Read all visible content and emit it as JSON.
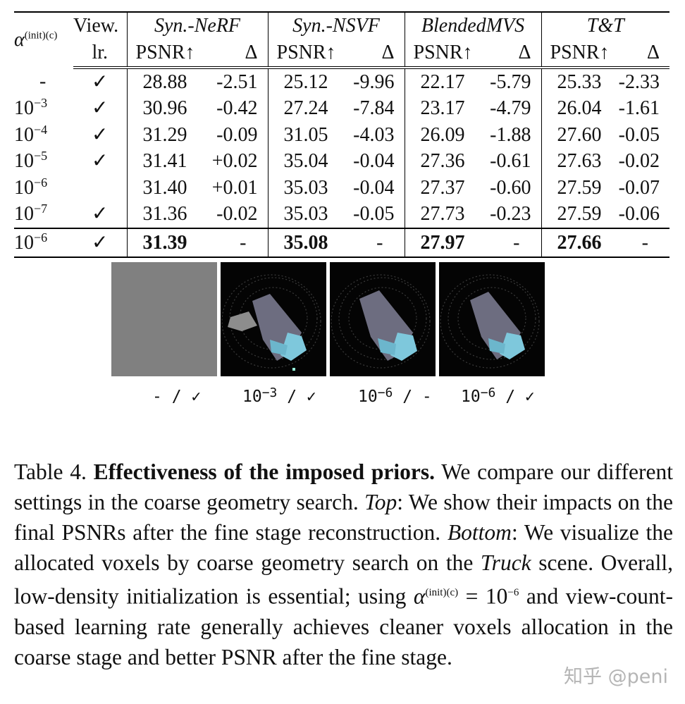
{
  "table": {
    "head": {
      "alpha_label": "α",
      "alpha_sup": "(init)(c)",
      "view_label_1": "View.",
      "view_label_2": "lr.",
      "datasets": [
        "Syn.-NeRF",
        "Syn.-NSVF",
        "BlendedMVS",
        "T&T"
      ],
      "metric": "PSNR↑",
      "delta": "Δ"
    },
    "rows": [
      {
        "alpha": "-",
        "exp": "",
        "view": "✓",
        "vals": [
          [
            "28.88",
            "-2.51"
          ],
          [
            "25.12",
            "-9.96"
          ],
          [
            "22.17",
            "-5.79"
          ],
          [
            "25.33",
            "-2.33"
          ]
        ]
      },
      {
        "alpha": "10",
        "exp": "−3",
        "view": "✓",
        "vals": [
          [
            "30.96",
            "-0.42"
          ],
          [
            "27.24",
            "-7.84"
          ],
          [
            "23.17",
            "-4.79"
          ],
          [
            "26.04",
            "-1.61"
          ]
        ]
      },
      {
        "alpha": "10",
        "exp": "−4",
        "view": "✓",
        "vals": [
          [
            "31.29",
            "-0.09"
          ],
          [
            "31.05",
            "-4.03"
          ],
          [
            "26.09",
            "-1.88"
          ],
          [
            "27.60",
            "-0.05"
          ]
        ]
      },
      {
        "alpha": "10",
        "exp": "−5",
        "view": "✓",
        "vals": [
          [
            "31.41",
            "+0.02"
          ],
          [
            "35.04",
            "-0.04"
          ],
          [
            "27.36",
            "-0.61"
          ],
          [
            "27.63",
            "-0.02"
          ]
        ]
      },
      {
        "alpha": "10",
        "exp": "−6",
        "view": "",
        "vals": [
          [
            "31.40",
            "+0.01"
          ],
          [
            "35.03",
            "-0.04"
          ],
          [
            "27.37",
            "-0.60"
          ],
          [
            "27.59",
            "-0.07"
          ]
        ]
      },
      {
        "alpha": "10",
        "exp": "−7",
        "view": "✓",
        "vals": [
          [
            "31.36",
            "-0.02"
          ],
          [
            "35.03",
            "-0.05"
          ],
          [
            "27.73",
            "-0.23"
          ],
          [
            "27.59",
            "-0.06"
          ]
        ]
      }
    ],
    "final": {
      "alpha": "10",
      "exp": "−6",
      "view": "✓",
      "vals": [
        [
          "31.39",
          "-"
        ],
        [
          "35.08",
          "-"
        ],
        [
          "27.97",
          "-"
        ],
        [
          "27.66",
          "-"
        ]
      ]
    }
  },
  "thumb_captions": [
    {
      "base": "- / ✓",
      "exp": ""
    },
    {
      "base": "10",
      "exp": "−3",
      "tail": " / ✓"
    },
    {
      "base": "10",
      "exp": "−6",
      "tail": " / -"
    },
    {
      "base": "10",
      "exp": "−6",
      "tail": " / ✓"
    }
  ],
  "caption": {
    "label": "Table 4.",
    "title": "Effectiveness of the imposed priors.",
    "t1": " We compare our different settings in the coarse geometry search. ",
    "top": "Top",
    "t2": ": We show their impacts on the final PSNRs after the fine stage reconstruction. ",
    "bottom": "Bottom",
    "t3": ": We visualize the allocated voxels by coarse geometry search on the ",
    "truck": "Truck",
    "t4": " scene. Overall, low-density initialization is essential; using ",
    "alpha": "α",
    "alpha_sup": "(init)(c)",
    "eq": " = 10",
    "eq_exp": "−6",
    "t5": " and view-count-based learning rate generally achieves cleaner voxels allocation in the coarse stage and better PSNR after the fine stage."
  },
  "watermark": "知乎 @peni"
}
